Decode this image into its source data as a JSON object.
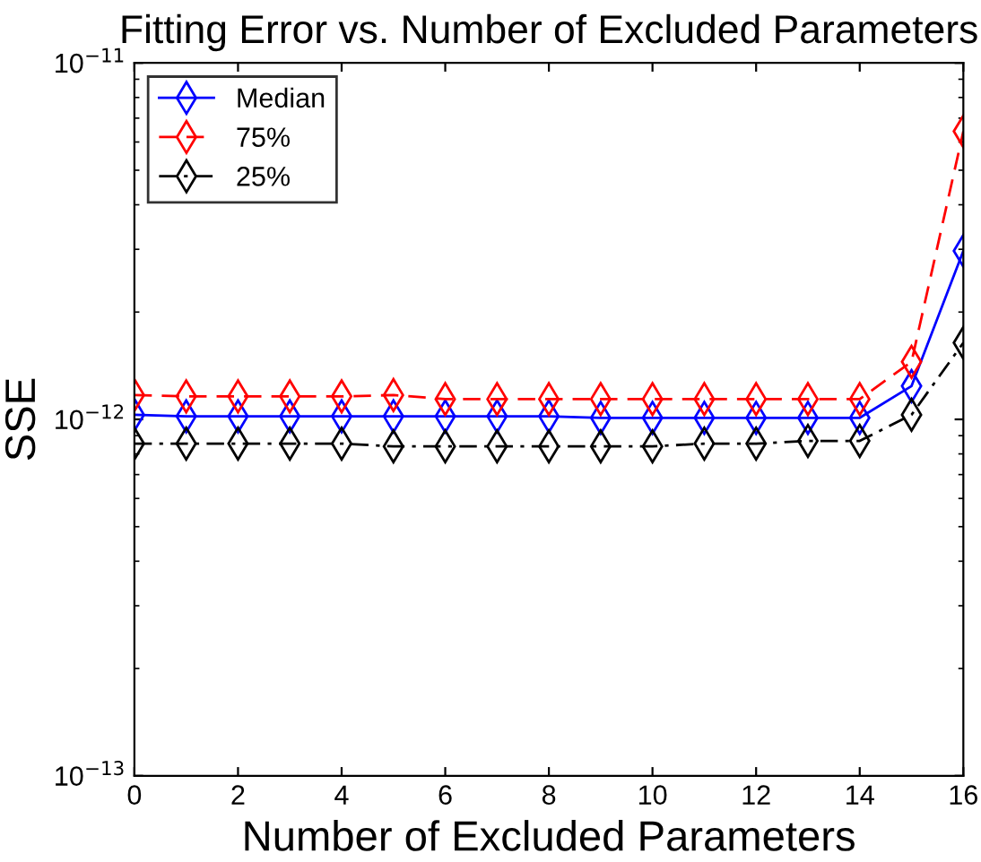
{
  "chart_data": {
    "type": "line",
    "title": "Fitting Error vs. Number of Excluded Parameters",
    "xlabel": "Number of Excluded Parameters",
    "ylabel": "SSE",
    "x": [
      0,
      1,
      2,
      3,
      4,
      5,
      6,
      7,
      8,
      9,
      10,
      11,
      12,
      13,
      14,
      15,
      16
    ],
    "series": [
      {
        "name": "Median",
        "color": "#0000ff",
        "line_style": "solid",
        "values": [
          1.03e-12,
          1.02e-12,
          1.02e-12,
          1.02e-12,
          1.02e-12,
          1.02e-12,
          1.02e-12,
          1.02e-12,
          1.02e-12,
          1.01e-12,
          1.01e-12,
          1.01e-12,
          1.01e-12,
          1.01e-12,
          1.01e-12,
          1.24e-12,
          2.97e-12
        ]
      },
      {
        "name": "75%",
        "color": "#ff0000",
        "line_style": "dashed",
        "values": [
          1.17e-12,
          1.16e-12,
          1.16e-12,
          1.16e-12,
          1.16e-12,
          1.17e-12,
          1.14e-12,
          1.14e-12,
          1.14e-12,
          1.14e-12,
          1.14e-12,
          1.14e-12,
          1.14e-12,
          1.14e-12,
          1.14e-12,
          1.45e-12,
          6.43e-12
        ]
      },
      {
        "name": "25%",
        "color": "#000000",
        "line_style": "dashdot",
        "values": [
          8.55e-13,
          8.55e-13,
          8.55e-13,
          8.55e-13,
          8.55e-13,
          8.4e-13,
          8.4e-13,
          8.4e-13,
          8.4e-13,
          8.4e-13,
          8.4e-13,
          8.55e-13,
          8.55e-13,
          8.7e-13,
          8.7e-13,
          1.03e-12,
          1.64e-12
        ]
      }
    ],
    "log": "y",
    "marker": "diamond",
    "legend": "top left",
    "grid": false,
    "xlim": [
      0,
      16
    ],
    "xticks": [
      0,
      2,
      4,
      6,
      8,
      10,
      12,
      14,
      16
    ],
    "ylim": [
      1e-13,
      1e-11
    ],
    "yticks": [
      {
        "value": 1e-13,
        "label": "10$^{−13}$"
      },
      {
        "value": 1e-12,
        "label": "10$^{−12}$"
      },
      {
        "value": 1e-11,
        "label": "10$^{−11}$"
      }
    ]
  }
}
